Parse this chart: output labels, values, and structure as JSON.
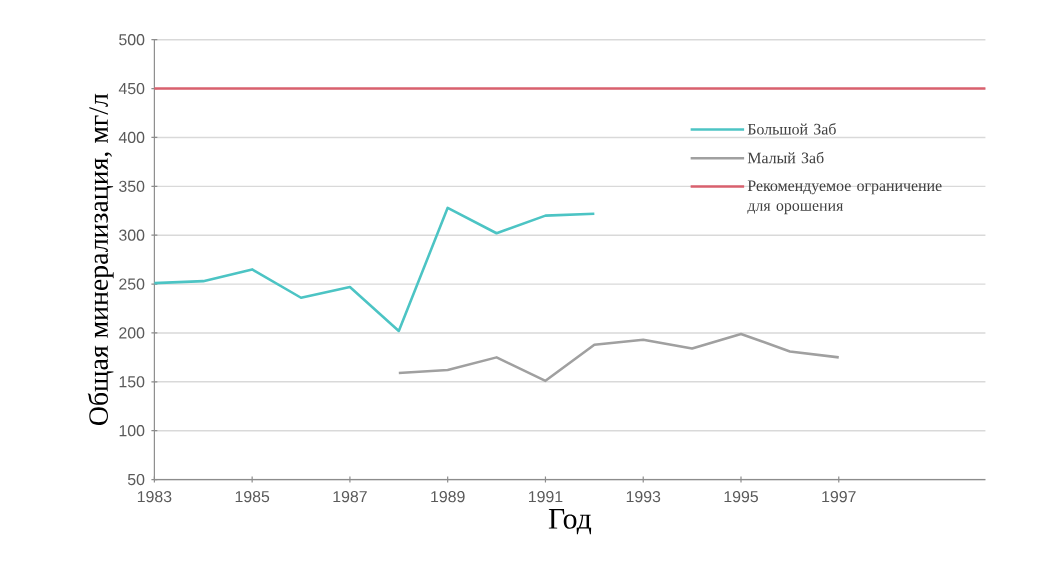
{
  "chart_data": {
    "type": "line",
    "xlabel": "Год",
    "ylabel": "Общая минерализация, мг/л",
    "xlim": [
      1983,
      2000
    ],
    "xticks": [
      1983,
      1985,
      1987,
      1989,
      1991,
      1993,
      1995,
      1997
    ],
    "ylim": [
      50,
      500
    ],
    "yticks": [
      50,
      100,
      150,
      200,
      250,
      300,
      350,
      400,
      450,
      500
    ],
    "grid": "y",
    "legend": "right",
    "marker": "none",
    "line_style": "solid",
    "series": [
      {
        "name": "Большой Заб",
        "color": "#4cc4c4",
        "x": [
          1983,
          1984,
          1985,
          1986,
          1987,
          1988,
          1989,
          1990,
          1991,
          1992
        ],
        "values": [
          251,
          253,
          265,
          236,
          247,
          202,
          328,
          302,
          320,
          322
        ]
      },
      {
        "name": "Малый Заб",
        "color": "#a0a0a0",
        "x": [
          1988,
          1989,
          1990,
          1991,
          1992,
          1993,
          1994,
          1995,
          1996,
          1997
        ],
        "values": [
          159,
          162,
          175,
          151,
          188,
          193,
          184,
          199,
          181,
          175
        ]
      }
    ],
    "ref_lines": [
      {
        "axis": "y",
        "value": 450,
        "label": "Рекомендуемое ограничение для орошения",
        "color": "#d9606e"
      }
    ]
  }
}
